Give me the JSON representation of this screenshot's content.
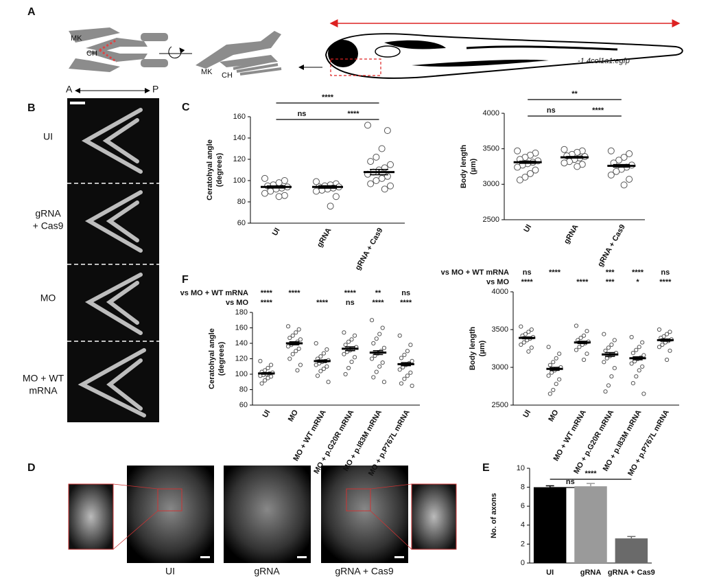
{
  "panels": {
    "A": {
      "label": "A",
      "schematic_labels": [
        "MK",
        "CH",
        "MK",
        "CH"
      ],
      "transgene": "-1.4col1a1:egfp"
    },
    "B": {
      "label": "B",
      "axis": [
        "A",
        "P"
      ],
      "rows": [
        [
          "UI"
        ],
        [
          "gRNA",
          "+ Cas9"
        ],
        [
          "MO"
        ],
        [
          "MO + WT",
          "mRNA"
        ]
      ]
    },
    "C": {
      "label": "C"
    },
    "D": {
      "label": "D",
      "images": [
        "UI",
        "gRNA",
        "gRNA + Cas9"
      ]
    },
    "E": {
      "label": "E"
    },
    "F": {
      "label": "F"
    }
  },
  "chart_data": [
    {
      "type": "scatter",
      "ylabel": [
        "Ceratohyal angle",
        "(degrees)"
      ],
      "categories": [
        "UI",
        "gRNA",
        "gRNA + Cas9"
      ],
      "points": [
        [
          102,
          100,
          98,
          96,
          95,
          94,
          93,
          92,
          90,
          88,
          86,
          85
        ],
        [
          99,
          97,
          96,
          95,
          94,
          94,
          93,
          92,
          91,
          90,
          85,
          76
        ],
        [
          152,
          147,
          130,
          122,
          118,
          115,
          112,
          110,
          108,
          106,
          104,
          102,
          100,
          97,
          95,
          92
        ]
      ],
      "means": [
        94,
        94,
        108
      ],
      "sem": [
        1,
        1.2,
        2.5
      ],
      "ylim": [
        60,
        160
      ],
      "yticks": [
        60,
        80,
        100,
        120,
        140,
        160
      ],
      "comparisons": [
        {
          "label": "****",
          "groups": [
            "UI",
            "gRNA + Cas9"
          ]
        },
        {
          "label": "ns",
          "groups": [
            "UI",
            "gRNA"
          ]
        },
        {
          "label": "****",
          "groups": [
            "gRNA",
            "gRNA + Cas9"
          ]
        }
      ]
    },
    {
      "type": "scatter",
      "ylabel": [
        "Body length",
        "(µm)"
      ],
      "categories": [
        "UI",
        "gRNA",
        "gRNA + Cas9"
      ],
      "points": [
        [
          3470,
          3440,
          3410,
          3380,
          3350,
          3330,
          3310,
          3290,
          3270,
          3240,
          3200,
          3150,
          3100,
          3060
        ],
        [
          3490,
          3470,
          3450,
          3420,
          3400,
          3390,
          3370,
          3350,
          3320,
          3300,
          3280,
          3250
        ],
        [
          3470,
          3430,
          3380,
          3340,
          3300,
          3270,
          3240,
          3210,
          3180,
          3130,
          3070,
          2990
        ]
      ],
      "means": [
        3310,
        3380,
        3260
      ],
      "sem": [
        15,
        12,
        18
      ],
      "ylim": [
        2500,
        4000
      ],
      "yticks": [
        2500,
        3000,
        3500,
        4000
      ],
      "comparisons": [
        {
          "label": "**",
          "groups": [
            "UI",
            "gRNA + Cas9"
          ]
        },
        {
          "label": "ns",
          "groups": [
            "UI",
            "gRNA"
          ]
        },
        {
          "label": "****",
          "groups": [
            "gRNA",
            "gRNA + Cas9"
          ]
        }
      ]
    },
    {
      "type": "scatter",
      "ylabel": [
        "Ceratohyal angle",
        "(degrees)"
      ],
      "categories": [
        "UI",
        "MO",
        "MO + WT mRNA",
        "MO + p.G20R mRNA",
        "MO + p.I83M mRNA",
        "MO + p.P767L mRNA"
      ],
      "points": [
        [
          117,
          112,
          108,
          105,
          103,
          102,
          101,
          100,
          99,
          98,
          97,
          95,
          92,
          88
        ],
        [
          162,
          158,
          154,
          150,
          147,
          145,
          142,
          140,
          138,
          136,
          133,
          130,
          126,
          120,
          112,
          105
        ],
        [
          140,
          132,
          127,
          123,
          120,
          118,
          117,
          116,
          114,
          112,
          110,
          107,
          104,
          98,
          90
        ],
        [
          154,
          150,
          145,
          142,
          138,
          135,
          133,
          131,
          129,
          126,
          122,
          116,
          108,
          100
        ],
        [
          170,
          160,
          152,
          146,
          140,
          134,
          130,
          127,
          124,
          120,
          115,
          110,
          103,
          96,
          90
        ],
        [
          150,
          138,
          130,
          125,
          121,
          117,
          114,
          112,
          109,
          106,
          102,
          98,
          94,
          88,
          85
        ]
      ],
      "means": [
        101,
        140,
        117,
        133,
        128,
        113
      ],
      "sem": [
        1,
        2,
        1.5,
        2.5,
        2.5,
        2
      ],
      "ylim": [
        60,
        180
      ],
      "yticks": [
        60,
        80,
        100,
        120,
        140,
        160,
        180
      ],
      "comparison_rows": [
        {
          "name": "vs MO + WT mRNA",
          "labels": [
            "****",
            "****",
            null,
            "****",
            "**",
            "ns"
          ]
        },
        {
          "name": "vs MO",
          "labels": [
            "****",
            null,
            "****",
            "ns",
            "****",
            "****"
          ]
        }
      ]
    },
    {
      "type": "scatter",
      "ylabel": [
        "Body length",
        "(µm)"
      ],
      "categories": [
        "UI",
        "MO",
        "MO + WT mRNA",
        "MO + p.G20R mRNA",
        "MO + p.I83M mRNA",
        "MO + p.P767L mRNA"
      ],
      "points": [
        [
          3540,
          3500,
          3470,
          3440,
          3420,
          3400,
          3380,
          3360,
          3330,
          3300,
          3260,
          3210
        ],
        [
          3270,
          3180,
          3120,
          3070,
          3030,
          3000,
          2980,
          2960,
          2930,
          2890,
          2840,
          2780,
          2700,
          2650
        ],
        [
          3550,
          3480,
          3420,
          3390,
          3360,
          3340,
          3320,
          3300,
          3270,
          3230,
          3180,
          3100
        ],
        [
          3440,
          3360,
          3300,
          3260,
          3220,
          3190,
          3170,
          3150,
          3120,
          3070,
          2990,
          2880,
          2760,
          2680
        ],
        [
          3400,
          3330,
          3270,
          3230,
          3190,
          3160,
          3130,
          3110,
          3080,
          3050,
          3010,
          2960,
          2880,
          2790,
          2650
        ],
        [
          3500,
          3470,
          3440,
          3410,
          3390,
          3370,
          3350,
          3330,
          3300,
          3270,
          3220,
          3100
        ]
      ],
      "means": [
        3390,
        2980,
        3330,
        3170,
        3120,
        3360
      ],
      "sem": [
        12,
        20,
        15,
        25,
        20,
        15
      ],
      "ylim": [
        2500,
        4000
      ],
      "yticks": [
        2500,
        3000,
        3500,
        4000
      ],
      "comparison_rows": [
        {
          "name": "vs MO + WT mRNA",
          "labels": [
            "ns",
            "****",
            null,
            "***",
            "****",
            "ns"
          ]
        },
        {
          "name": "vs MO",
          "labels": [
            "****",
            null,
            "****",
            "***",
            "*",
            "****"
          ]
        }
      ]
    },
    {
      "type": "bar",
      "ylabel": [
        "No. of axons"
      ],
      "categories": [
        "UI",
        "gRNA",
        "gRNA + Cas9"
      ],
      "values": [
        8.0,
        8.1,
        2.6
      ],
      "errors": [
        0.15,
        0.3,
        0.2
      ],
      "colors": [
        "#000000",
        "#9a9a9a",
        "#6a6a6a"
      ],
      "ylim": [
        0,
        10
      ],
      "yticks": [
        0,
        2,
        4,
        6,
        8,
        10
      ],
      "comparisons": [
        {
          "label": "ns",
          "groups": [
            "UI",
            "gRNA"
          ]
        },
        {
          "label": "****",
          "groups": [
            "UI",
            "gRNA + Cas9"
          ]
        }
      ]
    }
  ]
}
